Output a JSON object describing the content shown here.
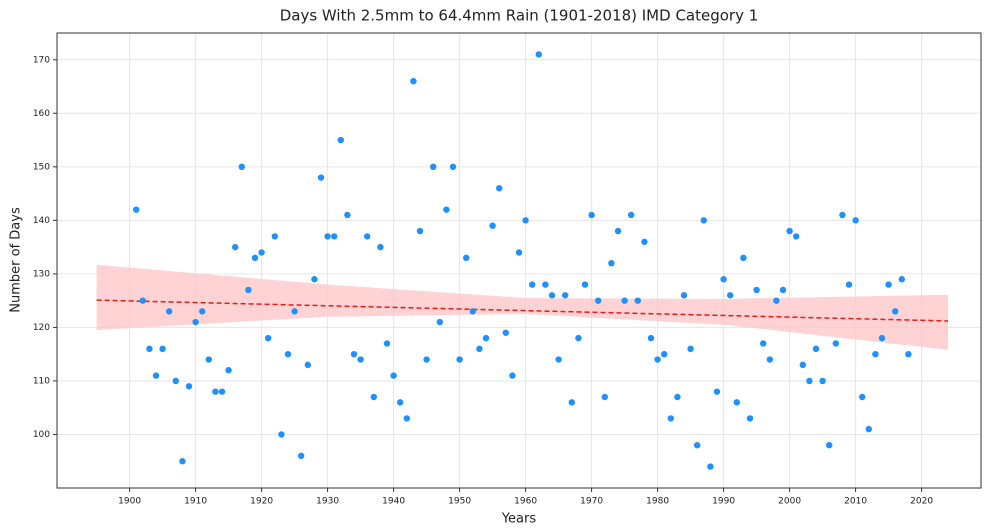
{
  "chart_data": {
    "type": "scatter",
    "title": "Days With 2.5mm to 64.4mm Rain (1901-2018) IMD Category 1",
    "xlabel": "Years",
    "ylabel": "Number of Days",
    "color": "#1e90ff",
    "x": [
      1901,
      1902,
      1903,
      1904,
      1905,
      1906,
      1907,
      1908,
      1909,
      1910,
      1911,
      1912,
      1913,
      1914,
      1915,
      1916,
      1917,
      1918,
      1919,
      1920,
      1921,
      1922,
      1923,
      1924,
      1925,
      1926,
      1927,
      1928,
      1929,
      1930,
      1931,
      1932,
      1933,
      1934,
      1935,
      1936,
      1937,
      1938,
      1939,
      1940,
      1941,
      1942,
      1943,
      1944,
      1945,
      1946,
      1947,
      1948,
      1949,
      1950,
      1951,
      1952,
      1953,
      1954,
      1955,
      1956,
      1957,
      1958,
      1959,
      1960,
      1961,
      1962,
      1963,
      1964,
      1965,
      1966,
      1967,
      1968,
      1969,
      1970,
      1971,
      1972,
      1973,
      1974,
      1975,
      1976,
      1977,
      1978,
      1979,
      1980,
      1981,
      1982,
      1983,
      1984,
      1985,
      1986,
      1987,
      1988,
      1989,
      1990,
      1991,
      1992,
      1993,
      1994,
      1995,
      1996,
      1997,
      1998,
      1999,
      2000,
      2001,
      2002,
      2003,
      2004,
      2005,
      2006,
      2007,
      2008,
      2009,
      2010,
      2011,
      2012,
      2013,
      2014,
      2015,
      2016,
      2017,
      2018
    ],
    "values": [
      142,
      125,
      116,
      111,
      116,
      123,
      110,
      95,
      109,
      121,
      123,
      114,
      108,
      108,
      112,
      135,
      150,
      127,
      133,
      134,
      118,
      137,
      100,
      115,
      123,
      96,
      113,
      129,
      148,
      137,
      137,
      155,
      141,
      115,
      114,
      137,
      107,
      135,
      117,
      111,
      106,
      103,
      166,
      138,
      114,
      150,
      121,
      142,
      150,
      114,
      133,
      123,
      116,
      118,
      139,
      146,
      119,
      111,
      134,
      140,
      128,
      171,
      128,
      126,
      114,
      126,
      106,
      118,
      128,
      141,
      125,
      107,
      132,
      138,
      125,
      141,
      125,
      136,
      118,
      114,
      115,
      103,
      107,
      126,
      116,
      98,
      140,
      94,
      108,
      129,
      126,
      106,
      133,
      103,
      127,
      117,
      114,
      125,
      127,
      138,
      137,
      113,
      110,
      116,
      110,
      98,
      117,
      141,
      128,
      140,
      107,
      101,
      115,
      118,
      128,
      123,
      129,
      115
    ],
    "trend": {
      "color": "#e8191a",
      "x": [
        1895,
        2024
      ],
      "values": [
        125.1,
        121.2
      ]
    },
    "band": {
      "color": "#ffc8c8",
      "x": [
        1895,
        1930,
        1960,
        1990,
        2024
      ],
      "lower": [
        119.5,
        122,
        122.5,
        120.5,
        115.8
      ],
      "upper": [
        131.7,
        128,
        125.5,
        125.3,
        126.1
      ]
    },
    "xlim": [
      1889,
      2029
    ],
    "ylim": [
      90,
      175
    ],
    "xticks": [
      1900,
      1910,
      1920,
      1930,
      1940,
      1950,
      1960,
      1970,
      1980,
      1990,
      2000,
      2010,
      2020
    ],
    "yticks": [
      100,
      110,
      120,
      130,
      140,
      150,
      160,
      170
    ],
    "grid": true
  }
}
